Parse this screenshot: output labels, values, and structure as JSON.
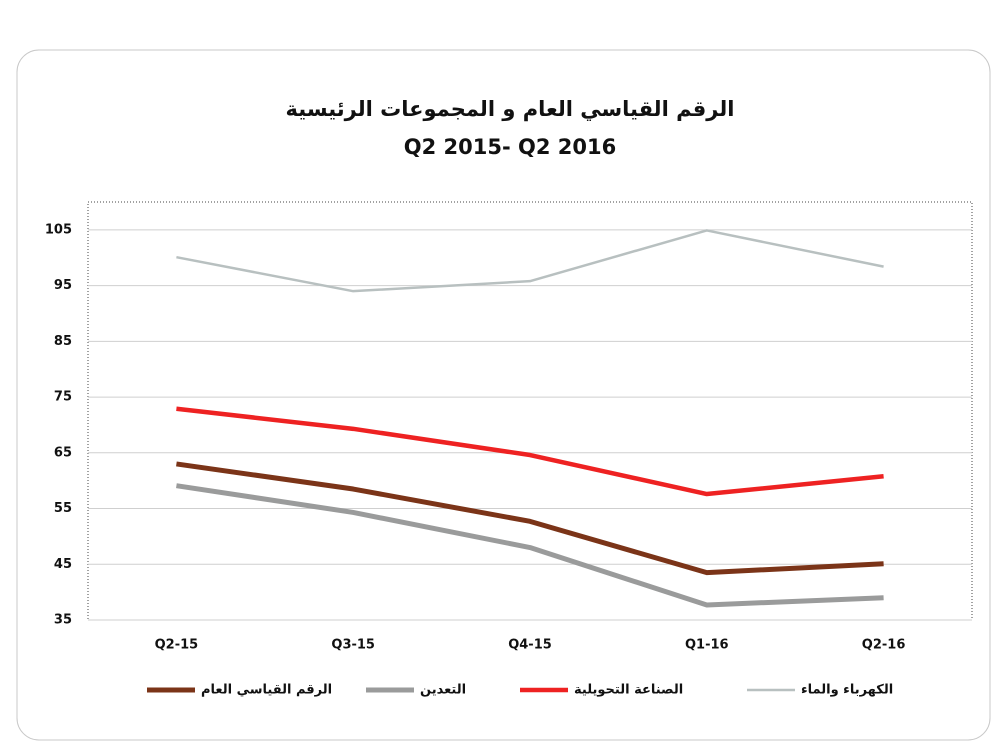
{
  "chart_data": {
    "type": "line",
    "title": "الرقم القياسي العام و المجموعات الرئيسية",
    "subtitle": "Q2 2015- Q2 2016",
    "categories": [
      "Q2-15",
      "Q3-15",
      "Q4-15",
      "Q1-16",
      "Q2-16"
    ],
    "series": [
      {
        "name": "الرقم القياسي العام",
        "color": "#7b3418",
        "values": [
          63,
          58.5,
          52.7,
          43.5,
          45.1
        ]
      },
      {
        "name": "التعدين",
        "color": "#9a9b9b",
        "values": [
          59.1,
          54.3,
          48,
          37.7,
          39
        ]
      },
      {
        "name": "الصناعة التحويلية",
        "color": "#ee2222",
        "values": [
          72.9,
          69.3,
          64.6,
          57.6,
          60.8
        ]
      },
      {
        "name": "الكهرباء والماء",
        "color": "#b8c0c0",
        "values": [
          100.1,
          94,
          95.8,
          104.9,
          98.4
        ]
      }
    ],
    "ylim": [
      35,
      110
    ],
    "yticks": [
      35,
      45,
      55,
      65,
      75,
      85,
      95,
      105
    ],
    "grid": true,
    "legend": "bottom"
  }
}
